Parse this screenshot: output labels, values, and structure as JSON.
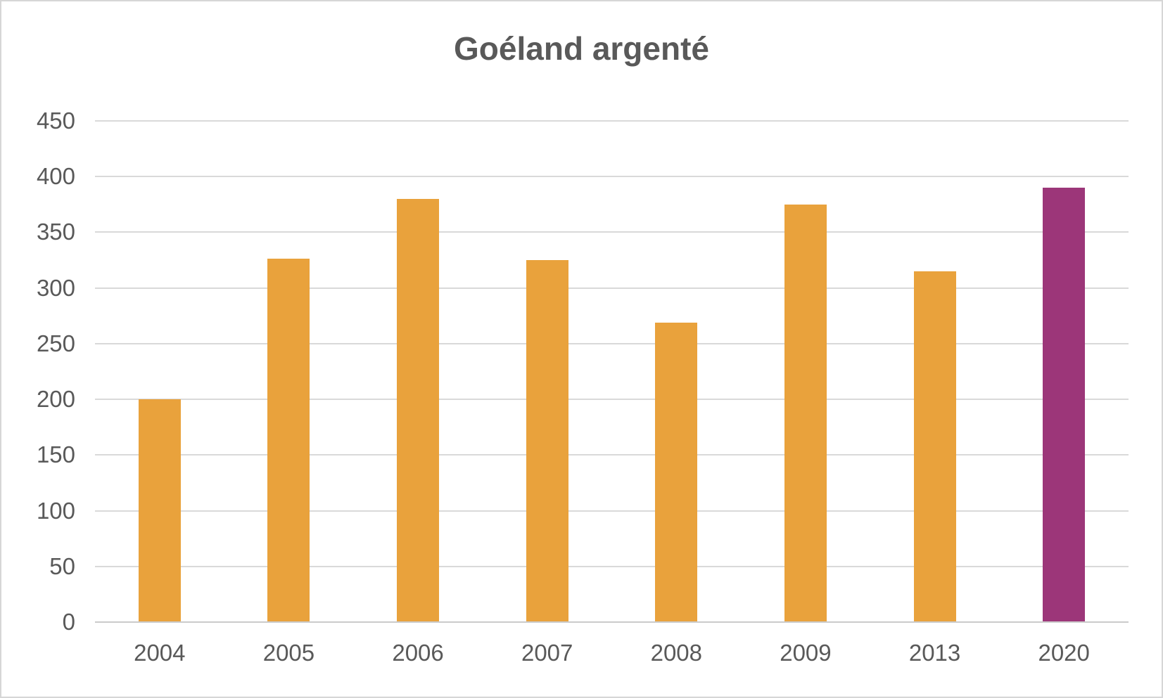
{
  "colors": {
    "bar_orange": "#E9A23C",
    "bar_purple": "#9C3679",
    "gridline": "#D9D9D9",
    "axis_line": "#CBCBCB",
    "text": "#595959",
    "frame_border": "#D6D6D6",
    "background": "#FFFFFF"
  },
  "chart_data": {
    "type": "bar",
    "title": "Goéland argenté",
    "xlabel": "",
    "ylabel": "",
    "categories": [
      "2004",
      "2005",
      "2006",
      "2007",
      "2008",
      "2009",
      "2013",
      "2020"
    ],
    "values": [
      200,
      326,
      380,
      325,
      269,
      375,
      315,
      390
    ],
    "bar_colors": [
      "#E9A23C",
      "#E9A23C",
      "#E9A23C",
      "#E9A23C",
      "#E9A23C",
      "#E9A23C",
      "#E9A23C",
      "#9C3679"
    ],
    "ylim": [
      0,
      450
    ],
    "yticks": [
      0,
      50,
      100,
      150,
      200,
      250,
      300,
      350,
      400,
      450
    ],
    "grid": true,
    "legend": false
  }
}
